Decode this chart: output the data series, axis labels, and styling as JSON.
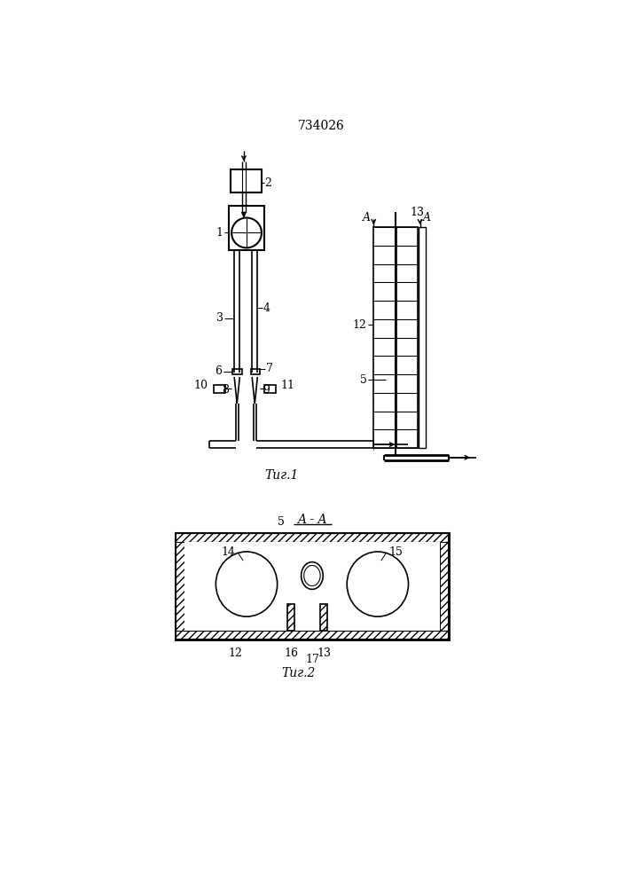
{
  "title": "734026",
  "fig1_label": "Τиг.1",
  "fig2_label": "Τиг.2",
  "aa_label": "A - A",
  "bg_color": "#ffffff",
  "line_color": "#000000"
}
